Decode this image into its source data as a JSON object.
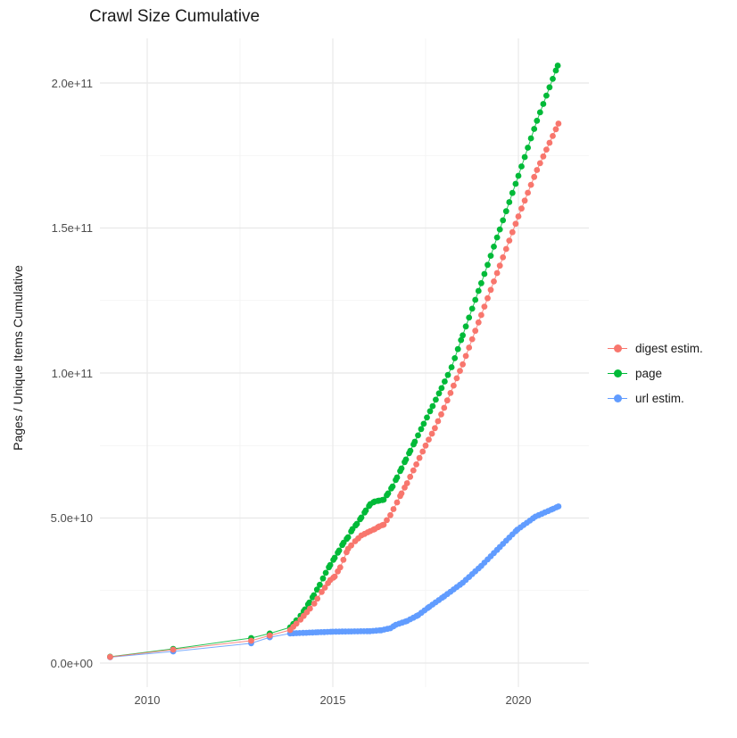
{
  "chart_data": {
    "type": "scatter",
    "title": "Crawl Size Cumulative",
    "xlabel": "",
    "ylabel": "Pages / Unique Items Cumulative",
    "grid": true,
    "legend_position": "right",
    "x_ticks": [
      {
        "value": 2010,
        "label": "2010"
      },
      {
        "value": 2015,
        "label": "2015"
      },
      {
        "value": 2020,
        "label": "2020"
      }
    ],
    "x_minor_ticks": [
      2012.5,
      2017.5
    ],
    "y_ticks": [
      {
        "value": 0,
        "label": "0.0e+00"
      },
      {
        "value": 50000000000.0,
        "label": "5.0e+10"
      },
      {
        "value": 100000000000.0,
        "label": "1.0e+11"
      },
      {
        "value": 150000000000.0,
        "label": "1.5e+11"
      },
      {
        "value": 200000000000.0,
        "label": "2.0e+11"
      }
    ],
    "y_minor_ticks": [
      25000000000.0,
      75000000000.0,
      125000000000.0,
      175000000000.0
    ],
    "xlim": [
      2008.7,
      2021.9
    ],
    "ylim": [
      -8000000000.0,
      215400000000.0
    ],
    "colors": {
      "digest": "#F8766D",
      "page": "#00BA38",
      "url": "#619CFF"
    },
    "series": [
      {
        "name": "url estim.",
        "color": "#619CFF",
        "points": [
          [
            2009.0,
            2000000000.0
          ],
          [
            2010.7,
            4000000000.0
          ],
          [
            2012.8,
            6800000000.0
          ],
          [
            2013.3,
            8900000000.0
          ],
          [
            2013.85,
            10200000000.0
          ],
          [
            2014.2,
            10400000000.0
          ],
          [
            2014.6,
            10600000000.0
          ],
          [
            2015.0,
            10800000000.0
          ],
          [
            2015.5,
            10900000000.0
          ],
          [
            2016.0,
            11000000000.0
          ],
          [
            2016.3,
            11300000000.0
          ],
          [
            2016.55,
            12000000000.0
          ],
          [
            2016.7,
            13200000000.0
          ],
          [
            2017.0,
            14500000000.0
          ],
          [
            2017.3,
            16500000000.0
          ],
          [
            2017.6,
            19400000000.0
          ],
          [
            2018.0,
            23000000000.0
          ],
          [
            2018.5,
            27700000000.0
          ],
          [
            2019.0,
            33500000000.0
          ],
          [
            2019.5,
            40000000000.0
          ],
          [
            2019.97,
            46000000000.0
          ],
          [
            2020.46,
            50500000000.0
          ],
          [
            2020.94,
            53200000000.0
          ],
          [
            2021.08,
            54000000000.0
          ]
        ]
      },
      {
        "name": "page",
        "color": "#00BA38",
        "points": [
          [
            2009.0,
            2200000000.0
          ],
          [
            2010.7,
            4900000000.0
          ],
          [
            2012.8,
            8600000000.0
          ],
          [
            2013.3,
            10200000000.0
          ],
          [
            2013.85,
            12300000000.0
          ],
          [
            2014.13,
            16300000000.0
          ],
          [
            2014.25,
            18500000000.0
          ],
          [
            2014.37,
            20900000000.0
          ],
          [
            2014.49,
            23400000000.0
          ],
          [
            2014.65,
            27000000000.0
          ],
          [
            2014.81,
            31100000000.0
          ],
          [
            2014.93,
            33800000000.0
          ],
          [
            2015.05,
            36300000000.0
          ],
          [
            2015.17,
            38800000000.0
          ],
          [
            2015.29,
            41500000000.0
          ],
          [
            2015.41,
            43400000000.0
          ],
          [
            2015.53,
            46200000000.0
          ],
          [
            2015.65,
            48000000000.0
          ],
          [
            2015.77,
            50200000000.0
          ],
          [
            2015.89,
            52600000000.0
          ],
          [
            2016.01,
            54800000000.0
          ],
          [
            2016.13,
            55700000000.0
          ],
          [
            2016.25,
            56000000000.0
          ],
          [
            2016.37,
            56300000000.0
          ],
          [
            2016.49,
            58500000000.0
          ],
          [
            2016.61,
            60900000000.0
          ],
          [
            2016.73,
            64000000000.0
          ],
          [
            2016.85,
            67100000000.0
          ],
          [
            2016.97,
            70200000000.0
          ],
          [
            2017.09,
            73200000000.0
          ],
          [
            2017.21,
            76300000000.0
          ],
          [
            2017.45,
            82500000000.0
          ],
          [
            2017.69,
            88600000000.0
          ],
          [
            2017.93,
            94800000000.0
          ],
          [
            2018.2,
            102000000000.0
          ],
          [
            2018.5,
            113000000000.0
          ],
          [
            2019.0,
            131000000000.0
          ],
          [
            2019.5,
            149500000000.0
          ],
          [
            2020.0,
            168000000000.0
          ],
          [
            2020.5,
            187000000000.0
          ],
          [
            2021.06,
            206000000000.0
          ]
        ]
      },
      {
        "name": "digest estim.",
        "color": "#F8766D",
        "points": [
          [
            2009.0,
            2100000000.0
          ],
          [
            2010.7,
            4600000000.0
          ],
          [
            2012.8,
            7700000000.0
          ],
          [
            2013.3,
            9500000000.0
          ],
          [
            2013.85,
            11400000000.0
          ],
          [
            2014.13,
            15000000000.0
          ],
          [
            2014.3,
            17500000000.0
          ],
          [
            2014.5,
            20500000000.0
          ],
          [
            2014.7,
            24500000000.0
          ],
          [
            2014.93,
            28600000000.0
          ],
          [
            2015.05,
            29800000000.0
          ],
          [
            2015.2,
            33000000000.0
          ],
          [
            2015.41,
            39400000000.0
          ],
          [
            2015.6,
            42000000000.0
          ],
          [
            2015.77,
            44000000000.0
          ],
          [
            2016.01,
            45500000000.0
          ],
          [
            2016.13,
            46200000000.0
          ],
          [
            2016.25,
            47100000000.0
          ],
          [
            2016.37,
            47700000000.0
          ],
          [
            2016.55,
            51000000000.0
          ],
          [
            2016.73,
            55400000000.0
          ],
          [
            2016.85,
            58500000000.0
          ],
          [
            2017.0,
            62000000000.0
          ],
          [
            2017.25,
            68500000000.0
          ],
          [
            2017.5,
            75000000000.0
          ],
          [
            2017.75,
            81000000000.0
          ],
          [
            2018.0,
            88000000000.0
          ],
          [
            2018.5,
            103000000000.0
          ],
          [
            2019.0,
            120000000000.0
          ],
          [
            2019.5,
            137000000000.0
          ],
          [
            2020.0,
            154000000000.0
          ],
          [
            2020.5,
            170000000000.0
          ],
          [
            2021.08,
            186000000000.0
          ]
        ]
      }
    ],
    "legend_order": [
      "digest estim.",
      "page",
      "url estim."
    ]
  }
}
